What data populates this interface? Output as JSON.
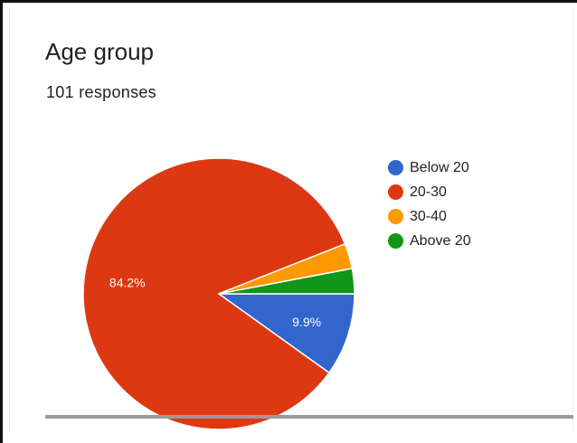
{
  "card": {
    "title": "Age group",
    "subtitle": "101 responses"
  },
  "chart_data": {
    "type": "pie",
    "title": "Age group",
    "subtitle": "101 responses",
    "legend_position": "right",
    "slices": [
      {
        "label": "Below 20",
        "value": 9.9,
        "display_label": "9.9%",
        "color": "#3366cc"
      },
      {
        "label": "20-30",
        "value": 84.2,
        "display_label": "84.2%",
        "color": "#dc3912"
      },
      {
        "label": "30-40",
        "value": 3.0,
        "display_label": "",
        "color": "#ff9900"
      },
      {
        "label": "Above 20",
        "value": 3.0,
        "display_label": "",
        "color": "#109618"
      }
    ]
  }
}
